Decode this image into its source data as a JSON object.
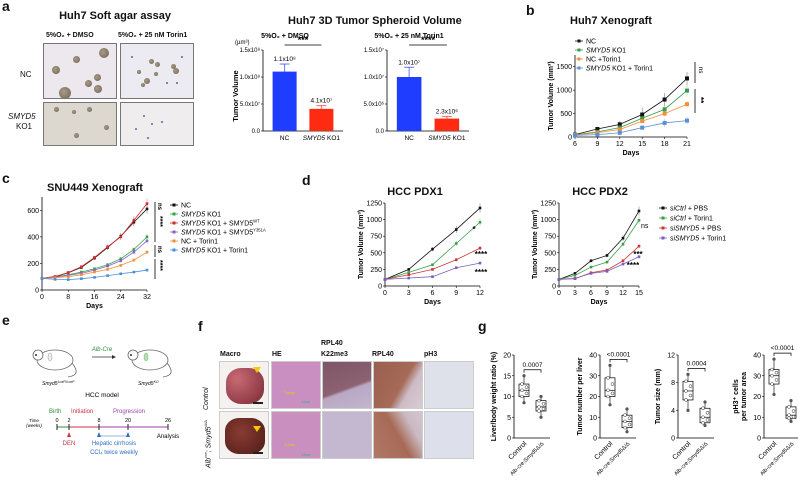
{
  "panels": {
    "a": {
      "letter": "a",
      "soft_agar": {
        "title": "Huh7 Soft agar assay",
        "col_labels": [
          "5%O₂ + DMSO",
          "5%O₂ + 25 nM Torin1"
        ],
        "row_labels": [
          "NC",
          "SMYD5",
          "KO1"
        ]
      }
    },
    "b": {
      "letter": "b"
    },
    "c": {
      "letter": "c"
    },
    "d": {
      "letter": "d"
    },
    "e": {
      "letter": "e",
      "genotype_left": "Smyd5",
      "genotype_left_sup": "LoxP/LoxP",
      "genotype_right": "Smyd5",
      "genotype_right_sup": "KO",
      "arrow_label": "Alb-Cre",
      "model_label": "HCC model",
      "time_label": "Time",
      "time_unit": "(weeks)",
      "phases": [
        "Birth",
        "Initiation",
        "Progression"
      ],
      "ticks": [
        "0",
        "2",
        "8",
        "20",
        "26"
      ],
      "analysis": "Analysis",
      "den": "DEN",
      "cirrhosis": "Hepatic cirrhosis",
      "ccl4": "CCl₄ twice weekly",
      "colors": {
        "birth": "#2e8b3e",
        "initiation": "#cc3344",
        "progression": "#9b3fa8",
        "treatment": "#2f6fc0"
      }
    },
    "f": {
      "letter": "f",
      "col_labels": [
        "Macro",
        "HE",
        "RPL40",
        "K22me3",
        "RPL40",
        "pH3"
      ],
      "row_labels": [
        "Control",
        "Alb",
        "cre",
        "; Smyd5",
        "Δ/Δ"
      ],
      "he_labels": [
        "Tumor",
        "Liver"
      ]
    },
    "g": {
      "letter": "g"
    }
  },
  "chart_data": [
    {
      "id": "a-spheroid",
      "type": "bar",
      "title": "Huh7 3D Tumor Spheroid Volume",
      "subtitle": "5%O₂ + DMSO",
      "ylabel": "Tumor Volume",
      "yunit": "(µm³)",
      "categories": [
        "NC",
        "SMYD5 KO1"
      ],
      "values": [
        110000000.0,
        41000000.0
      ],
      "errors": [
        14000000.0,
        6000000.0
      ],
      "data_labels": [
        "1.1x10⁸",
        "4.1x10⁷"
      ],
      "yticks": [
        "0.0",
        "5.0x10⁷",
        "1.0x10⁸",
        "1.5x10⁸"
      ],
      "ylim": [
        0,
        150000000.0
      ],
      "significance": "***",
      "colors": [
        "#1f3dff",
        "#ff2a12"
      ]
    },
    {
      "id": "a-spheroid-torin",
      "type": "bar",
      "subtitle": "5%O₂ + 25 nM Torin1",
      "categories": [
        "NC",
        "SMYD5 KO1"
      ],
      "values": [
        10000000.0,
        2300000.0
      ],
      "errors": [
        1800000.0,
        400000.0
      ],
      "data_labels": [
        "1.0x10⁷",
        "2.3x10⁶"
      ],
      "yticks": [
        "0.0",
        "5.0x10⁶",
        "1.0x10⁷",
        "1.5x10⁷"
      ],
      "ylim": [
        0,
        15000000.0
      ],
      "significance": "****",
      "colors": [
        "#1f3dff",
        "#ff2a12"
      ]
    },
    {
      "id": "b-huh7",
      "type": "line",
      "title": "Huh7  Xenograft",
      "xlabel": "Days",
      "ylabel": "Tumor Volume (mm³)",
      "x": [
        6,
        9,
        12,
        15,
        18,
        21
      ],
      "xlim": [
        6,
        21
      ],
      "ylim": [
        0,
        1750
      ],
      "yticks": [
        0,
        500,
        1000,
        1500
      ],
      "series": [
        {
          "name": "NC",
          "color": "#111111",
          "values": [
            50,
            170,
            270,
            480,
            800,
            1250
          ],
          "err": [
            15,
            50,
            70,
            150,
            140,
            140
          ]
        },
        {
          "name": "SMYD5 KO1",
          "color": "#3a9a4a",
          "values": [
            45,
            110,
            200,
            400,
            590,
            990
          ],
          "err": [
            15,
            40,
            50,
            60,
            80,
            130
          ]
        },
        {
          "name": "NC +Torin1",
          "color": "#f0913a",
          "values": [
            40,
            90,
            160,
            340,
            500,
            700
          ],
          "err": [
            10,
            30,
            40,
            50,
            70,
            70
          ]
        },
        {
          "name": "SMYD5 KO1 + Torin1",
          "color": "#5b8fd6",
          "values": [
            35,
            50,
            90,
            200,
            300,
            350
          ],
          "err": [
            10,
            20,
            30,
            40,
            90,
            80
          ]
        }
      ],
      "annotations": [
        "ns",
        "**"
      ]
    },
    {
      "id": "c-snu449",
      "type": "line",
      "title": "SNU449 Xenograft",
      "xlabel": "Days",
      "x": [
        0,
        4,
        8,
        12,
        16,
        20,
        24,
        28,
        32
      ],
      "xticks": [
        0,
        8,
        16,
        24,
        32
      ],
      "ylim": [
        0,
        700
      ],
      "yticks": [
        0,
        200,
        400,
        600
      ],
      "series": [
        {
          "name": "NC",
          "color": "#111111",
          "values": [
            88,
            100,
            130,
            170,
            240,
            320,
            405,
            510,
            610
          ]
        },
        {
          "name": "SMYD5 KO1",
          "color": "#3aa04a",
          "values": [
            88,
            98,
            115,
            135,
            160,
            190,
            235,
            305,
            400
          ]
        },
        {
          "name": "SMYD5 KO1 + SMYD5WT",
          "color": "#d42a2a",
          "values": [
            88,
            102,
            132,
            175,
            245,
            325,
            400,
            525,
            650
          ]
        },
        {
          "name": "SMYD5 KO1 + SMYD5Y351A",
          "color": "#8a63c8",
          "values": [
            88,
            96,
            110,
            125,
            150,
            180,
            220,
            285,
            370
          ]
        },
        {
          "name": "NC + Torin1",
          "color": "#f0913a",
          "values": [
            88,
            92,
            100,
            115,
            135,
            155,
            185,
            225,
            285
          ]
        },
        {
          "name": "SMYD5 KO1 + Torin1",
          "color": "#4a8ed8",
          "values": [
            88,
            80,
            78,
            85,
            95,
            108,
            122,
            135,
            150
          ]
        }
      ],
      "legend_sup": [
        "WT",
        "Y351A"
      ],
      "annotations": [
        "ns",
        "****",
        "ns",
        "****"
      ]
    },
    {
      "id": "d-pdx1",
      "type": "line",
      "title": "HCC PDX1",
      "xlabel": "Days",
      "ylabel": "Tumor Volume (mm³)",
      "x": [
        0,
        3,
        6,
        9,
        12
      ],
      "ylim": [
        0,
        1250
      ],
      "yticks": [
        0,
        250,
        500,
        750,
        1000,
        1250
      ],
      "series": [
        {
          "name": "siCtrl + PBS",
          "color": "#111111",
          "values": [
            100,
            250,
            555,
            850,
            1175
          ]
        },
        {
          "name": "siCtrl + Torin1",
          "color": "#3aa04a",
          "values": [
            100,
            205,
            320,
            640,
            960
          ]
        },
        {
          "name": "siSMYD5 + PBS",
          "color": "#c8383a",
          "values": [
            100,
            170,
            250,
            395,
            570
          ]
        },
        {
          "name": "siSMYD5 + Torin1",
          "color": "#7a5fbe",
          "values": [
            100,
            120,
            140,
            275,
            345
          ]
        }
      ],
      "annotations": [
        "*",
        "****",
        "****"
      ]
    },
    {
      "id": "d-pdx2",
      "type": "line",
      "title": "HCC PDX2",
      "xlabel": "Days",
      "ylabel": "Tumor Volume (mm³)",
      "x": [
        0,
        3,
        6,
        9,
        12,
        15
      ],
      "ylim": [
        0,
        1250
      ],
      "yticks": [
        0,
        250,
        500,
        750,
        1000,
        1250
      ],
      "series": [
        {
          "name": "siCtrl + PBS",
          "color": "#111111",
          "values": [
            100,
            190,
            380,
            460,
            720,
            1130
          ]
        },
        {
          "name": "siCtrl + Torin1",
          "color": "#3aa04a",
          "values": [
            100,
            160,
            285,
            360,
            630,
            990
          ]
        },
        {
          "name": "siSMYD5 + PBS",
          "color": "#c8383a",
          "values": [
            100,
            110,
            200,
            240,
            380,
            600
          ]
        },
        {
          "name": "siSMYD5 + Torin1",
          "color": "#7a5fbe",
          "values": [
            100,
            115,
            190,
            220,
            330,
            440
          ]
        }
      ],
      "annotations": [
        "ns",
        "***",
        "****"
      ]
    },
    {
      "id": "g-liver-ratio",
      "type": "box",
      "ylabel": "Liver/body weight ratio (%)",
      "categories": [
        "Control",
        "Alb-cre;Smyd5Δ/Δ"
      ],
      "ylim": [
        0,
        20
      ],
      "yticks": [
        0,
        5,
        10,
        15,
        20
      ],
      "box": [
        {
          "min": 8.5,
          "q1": 10,
          "median": 11.5,
          "q3": 13,
          "max": 15
        },
        {
          "min": 5,
          "q1": 6.5,
          "median": 7.5,
          "q3": 9,
          "max": 10
        }
      ],
      "pvalue": "0.0007"
    },
    {
      "id": "g-tumor-number",
      "type": "box",
      "ylabel": "Tumor number per liver",
      "categories": [
        "Control",
        "Alb-cre;Smyd5Δ/Δ"
      ],
      "ylim": [
        0,
        40
      ],
      "yticks": [
        0,
        10,
        20,
        30,
        40
      ],
      "box": [
        {
          "min": 16,
          "q1": 20,
          "median": 23,
          "q3": 29,
          "max": 35
        },
        {
          "min": 3,
          "q1": 5,
          "median": 8,
          "q3": 11,
          "max": 14
        }
      ],
      "pvalue": "<0.0001"
    },
    {
      "id": "g-tumor-size",
      "type": "box",
      "ylabel": "Tumor size (mm)",
      "categories": [
        "Control",
        "Alb-cre;Smyd5Δ/Δ"
      ],
      "ylim": [
        0,
        12
      ],
      "yticks": [
        0,
        4,
        8,
        12
      ],
      "box": [
        {
          "min": 4,
          "q1": 5.5,
          "median": 6.8,
          "q3": 8.2,
          "max": 9.2
        },
        {
          "min": 1.8,
          "q1": 2.2,
          "median": 3,
          "q3": 4.3,
          "max": 5.2
        }
      ],
      "pvalue": "0.0004"
    },
    {
      "id": "g-ph3",
      "type": "box",
      "ylabel": "pH3⁺ cells per tumor area",
      "categories": [
        "Control",
        "Alb-cre;Smyd5Δ/Δ"
      ],
      "ylim": [
        0,
        40
      ],
      "yticks": [
        0,
        10,
        20,
        30,
        40
      ],
      "box": [
        {
          "min": 21,
          "q1": 26,
          "median": 30,
          "q3": 33,
          "max": 38
        },
        {
          "min": 8,
          "q1": 9.5,
          "median": 11,
          "q3": 15,
          "max": 18
        }
      ],
      "pvalue": "<0.0001"
    }
  ]
}
